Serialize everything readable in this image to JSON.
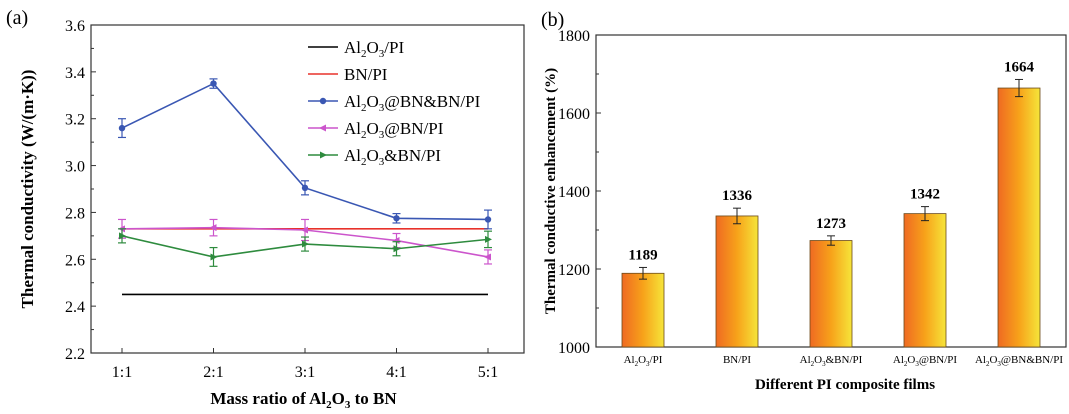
{
  "chart_data": [
    {
      "panel": "(a)",
      "type": "line",
      "ylabel": "Thermal conductivity (W/(m·K))",
      "xlabel": {
        "pre": "Mass ratio of Al",
        "sub1": "2",
        "mid": "O",
        "sub2": "3",
        "post": " to BN"
      },
      "categories": [
        "1:1",
        "2:1",
        "3:1",
        "4:1",
        "5:1"
      ],
      "ylim": [
        2.2,
        3.6
      ],
      "yticks": [
        "2.2",
        "2.4",
        "2.6",
        "2.8",
        "3.0",
        "3.2",
        "3.4",
        "3.6"
      ],
      "legend_position": "top-right",
      "series": [
        {
          "name": "Al2O3/PI",
          "legend": {
            "a": "Al",
            "s1": "2",
            "b": "O",
            "s2": "3",
            "c": "/PI"
          },
          "color": "#000000",
          "marker": "none",
          "values": [
            2.45,
            2.45,
            2.45,
            2.45,
            2.45
          ],
          "errors": [
            0,
            0,
            0,
            0,
            0
          ]
        },
        {
          "name": "BN/PI",
          "legend": {
            "a": "BN/PI",
            "s1": "",
            "b": "",
            "s2": "",
            "c": ""
          },
          "color": "#e8322b",
          "marker": "none",
          "values": [
            2.73,
            2.73,
            2.73,
            2.73,
            2.73
          ],
          "errors": [
            0,
            0,
            0,
            0,
            0
          ]
        },
        {
          "name": "Al2O3@BN&BN/PI",
          "legend": {
            "a": "Al",
            "s1": "2",
            "b": "O",
            "s2": "3",
            "c": "@BN&BN/PI"
          },
          "color": "#3a57b3",
          "marker": "circle",
          "values": [
            3.16,
            3.35,
            2.905,
            2.775,
            2.77
          ],
          "errors": [
            0.04,
            0.02,
            0.03,
            0.02,
            0.04
          ]
        },
        {
          "name": "Al2O3@BN/PI",
          "legend": {
            "a": "Al",
            "s1": "2",
            "b": "O",
            "s2": "3",
            "c": "@BN/PI"
          },
          "color": "#cc55cc",
          "marker": "left-triangle",
          "values": [
            2.73,
            2.735,
            2.725,
            2.68,
            2.61
          ],
          "errors": [
            0.04,
            0.035,
            0.045,
            0.03,
            0.03
          ]
        },
        {
          "name": "Al2O3&BN/PI",
          "legend": {
            "a": "Al",
            "s1": "2",
            "b": "O",
            "s2": "3",
            "c": "&BN/PI"
          },
          "color": "#2e8b3e",
          "marker": "right-triangle",
          "values": [
            2.7,
            2.61,
            2.665,
            2.645,
            2.685
          ],
          "errors": [
            0.03,
            0.04,
            0.03,
            0.03,
            0.035
          ]
        }
      ]
    },
    {
      "panel": "(b)",
      "type": "bar",
      "ylabel": "Thermal conductive enhancement (%)",
      "xlabel": "Different PI composite films",
      "categories": [
        {
          "a": "Al",
          "s1": "2",
          "b": "O",
          "s2": "3",
          "c": "/PI"
        },
        {
          "a": "BN/PI",
          "s1": "",
          "b": "",
          "s2": "",
          "c": ""
        },
        {
          "a": "Al",
          "s1": "2",
          "b": "O",
          "s2": "3",
          "c": "&BN/PI"
        },
        {
          "a": "Al",
          "s1": "2",
          "b": "O",
          "s2": "3",
          "c": "@BN/PI"
        },
        {
          "a": "Al",
          "s1": "2",
          "b": "O",
          "s2": "3",
          "c": "@BN&BN/PI"
        }
      ],
      "values": [
        1189,
        1336,
        1273,
        1342,
        1664
      ],
      "value_labels": [
        "1189",
        "1336",
        "1273",
        "1342",
        "1664"
      ],
      "errors": [
        15,
        20,
        12,
        18,
        22
      ],
      "ylim": [
        1000,
        1800
      ],
      "yticks": [
        "1000",
        "1200",
        "1400",
        "1600",
        "1800"
      ],
      "bar_gradient": [
        "#ef6a22",
        "#f7a21a",
        "#f6e53a"
      ]
    }
  ]
}
